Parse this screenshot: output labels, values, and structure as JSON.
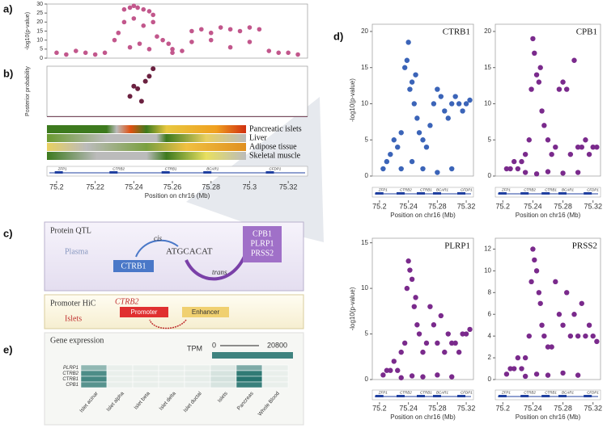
{
  "panel_labels": [
    "a)",
    "b)",
    "c)",
    "d)",
    "e)"
  ],
  "genes": [
    "ZFP1",
    "CTRB2",
    "CTRB1",
    "BCAR1",
    "CFDP1"
  ],
  "chart_data": [
    {
      "type": "scatter",
      "ylabel": "-log10(p-value)",
      "xlim": [
        75.195,
        75.33
      ],
      "ylim": [
        0,
        30
      ],
      "yticks": [
        0,
        5,
        10,
        15,
        20,
        25,
        30
      ],
      "x": [
        75.2,
        75.205,
        75.21,
        75.215,
        75.22,
        75.225,
        75.23,
        75.232,
        75.235,
        75.238,
        75.24,
        75.242,
        75.245,
        75.248,
        75.25,
        75.252,
        75.255,
        75.258,
        75.26,
        75.265,
        75.27,
        75.275,
        75.28,
        75.285,
        75.29,
        75.295,
        75.3,
        75.305,
        75.31,
        75.315,
        75.32,
        75.325,
        75.235,
        75.24,
        75.245,
        75.25,
        75.238,
        75.243,
        75.248,
        75.27,
        75.28,
        75.29,
        75.3,
        75.26
      ],
      "series": [
        {
          "color": "#c2578c",
          "values": [
            3,
            2,
            4,
            3,
            2,
            3,
            10,
            14,
            27,
            28,
            29,
            28,
            27,
            26,
            20,
            12,
            10,
            8,
            5,
            4,
            15,
            16,
            14,
            17,
            16,
            15,
            17,
            16,
            4,
            3,
            3,
            2,
            20,
            22,
            18,
            24,
            6,
            8,
            5,
            9,
            10,
            6,
            9,
            3
          ]
        }
      ]
    },
    {
      "type": "scatter",
      "ylabel": "Posterior probability",
      "xlabel": "Position on chr16 (Mb)",
      "xlim": [
        75.195,
        75.33
      ],
      "ylim": [
        0,
        1
      ],
      "xticks": [
        75.2,
        75.22,
        75.24,
        75.26,
        75.28,
        75.3,
        75.32
      ],
      "tracks": [
        "Pancreatic islets",
        "Liver",
        "Adipose tissue",
        "Skeletal muscle"
      ],
      "x": [
        75.238,
        75.24,
        75.242,
        75.244,
        75.246,
        75.248,
        75.25
      ],
      "series": [
        {
          "color": "#6b2140",
          "values": [
            0.4,
            0.6,
            0.55,
            0.3,
            0.7,
            0.8,
            0.95
          ]
        }
      ]
    },
    {
      "type": "scatter",
      "title": "CTRB1",
      "ylabel": "-log10(p-value)",
      "xlabel": "Position on chr16 (Mb)",
      "xlim": [
        75.19,
        75.33
      ],
      "ylim": [
        0,
        21
      ],
      "yticks": [
        0,
        5,
        10,
        15,
        20
      ],
      "xticks": [
        75.2,
        75.24,
        75.28,
        75.32
      ],
      "x": [
        75.205,
        75.21,
        75.215,
        75.22,
        75.225,
        75.23,
        75.235,
        75.238,
        75.24,
        75.242,
        75.245,
        75.248,
        75.25,
        75.252,
        75.255,
        75.26,
        75.265,
        75.27,
        75.275,
        75.28,
        75.285,
        75.29,
        75.295,
        75.3,
        75.305,
        75.31,
        75.315,
        75.32,
        75.325,
        75.23,
        75.245,
        75.26,
        75.28,
        75.3
      ],
      "series": [
        {
          "color": "#3b64b8",
          "values": [
            1,
            2,
            3,
            5,
            4,
            6,
            15,
            16,
            18.5,
            12,
            13,
            10,
            14,
            8,
            6,
            5,
            4,
            7,
            10,
            12,
            11,
            9,
            8,
            10,
            11,
            10,
            9,
            10,
            10.5,
            1,
            2,
            1,
            0.5,
            1
          ]
        }
      ]
    },
    {
      "type": "scatter",
      "title": "CPB1",
      "xlabel": "Position on chr16 (Mb)",
      "xlim": [
        75.19,
        75.33
      ],
      "ylim": [
        0,
        21
      ],
      "yticks": [
        0,
        5,
        10,
        15,
        20
      ],
      "xticks": [
        75.2,
        75.24,
        75.28,
        75.32
      ],
      "x": [
        75.205,
        75.21,
        75.215,
        75.22,
        75.225,
        75.23,
        75.235,
        75.238,
        75.24,
        75.242,
        75.245,
        75.248,
        75.25,
        75.252,
        75.255,
        75.26,
        75.265,
        75.27,
        75.275,
        75.28,
        75.285,
        75.29,
        75.295,
        75.3,
        75.305,
        75.31,
        75.315,
        75.32,
        75.325,
        75.23,
        75.245,
        75.26,
        75.28,
        75.3
      ],
      "series": [
        {
          "color": "#7a2a8c",
          "values": [
            1,
            1,
            2,
            1,
            2,
            3,
            5,
            12,
            19,
            17,
            14,
            13,
            15,
            9,
            7,
            5,
            3,
            4,
            12,
            13,
            12,
            3,
            16,
            4,
            4,
            5,
            3,
            4,
            4,
            0.5,
            0.3,
            0.6,
            0.4,
            0.5
          ]
        }
      ]
    },
    {
      "type": "scatter",
      "title": "PLRP1",
      "ylabel": "-log10(p-value)",
      "xlabel": "Position on chr16 (Mb)",
      "xlim": [
        75.19,
        75.33
      ],
      "ylim": [
        0,
        15.5
      ],
      "yticks": [
        0,
        5,
        10,
        15
      ],
      "xticks": [
        75.2,
        75.24,
        75.28,
        75.32
      ],
      "x": [
        75.205,
        75.21,
        75.215,
        75.22,
        75.225,
        75.23,
        75.235,
        75.238,
        75.24,
        75.242,
        75.245,
        75.248,
        75.25,
        75.252,
        75.255,
        75.26,
        75.265,
        75.27,
        75.275,
        75.28,
        75.285,
        75.29,
        75.295,
        75.3,
        75.305,
        75.31,
        75.315,
        75.32,
        75.325,
        75.23,
        75.245,
        75.26,
        75.28,
        75.3
      ],
      "series": [
        {
          "color": "#7a2a8c",
          "values": [
            0.5,
            1,
            1,
            2,
            1,
            3,
            4,
            10,
            13,
            12,
            11,
            8,
            9,
            6,
            5,
            3,
            4,
            8,
            6,
            4,
            7,
            3,
            5,
            4,
            4,
            3,
            5,
            5,
            5.5,
            0.2,
            0.4,
            0.3,
            0.5,
            0.3
          ]
        }
      ]
    },
    {
      "type": "scatter",
      "title": "PRSS2",
      "xlabel": "Position on chr16 (Mb)",
      "xlim": [
        75.19,
        75.33
      ],
      "ylim": [
        0,
        13
      ],
      "yticks": [
        0,
        2,
        4,
        6,
        8,
        10,
        12
      ],
      "xticks": [
        75.2,
        75.24,
        75.28,
        75.32
      ],
      "x": [
        75.205,
        75.21,
        75.215,
        75.22,
        75.225,
        75.23,
        75.235,
        75.238,
        75.24,
        75.242,
        75.245,
        75.248,
        75.25,
        75.252,
        75.255,
        75.26,
        75.265,
        75.27,
        75.275,
        75.28,
        75.285,
        75.29,
        75.295,
        75.3,
        75.305,
        75.31,
        75.315,
        75.32,
        75.325,
        75.23,
        75.245,
        75.26,
        75.28,
        75.3
      ],
      "series": [
        {
          "color": "#7a2a8c",
          "values": [
            0.5,
            1,
            1,
            2,
            1,
            2,
            4,
            9,
            12,
            11,
            10,
            8,
            7,
            5,
            4,
            3,
            3,
            9,
            6,
            5,
            8,
            4,
            6,
            4,
            7,
            4,
            5,
            4,
            3.5,
            0.3,
            0.5,
            0.4,
            0.6,
            0.4
          ]
        }
      ]
    },
    {
      "type": "heatmap",
      "title": "Gene expression",
      "color": "#1f6f6a",
      "colorbar": {
        "label": "TPM",
        "ticks": [
          0,
          20800
        ]
      },
      "rows": [
        "PLRP1",
        "CTRB2",
        "CTRB1",
        "CPB1"
      ],
      "categories": [
        "Islet acinar",
        "Islet alpha",
        "Islet beta",
        "Islet delta",
        "Islet ductal",
        "Islets",
        "Pancreas",
        "Whole Blood"
      ],
      "values": [
        [
          9000,
          0,
          0,
          0,
          0,
          1200,
          11000,
          0
        ],
        [
          16000,
          0,
          0,
          0,
          200,
          2000,
          19000,
          0
        ],
        [
          17000,
          0,
          0,
          0,
          200,
          2200,
          20000,
          0
        ],
        [
          15000,
          0,
          0,
          0,
          100,
          1800,
          18000,
          0
        ]
      ]
    }
  ],
  "diagram": {
    "qtl_title": "Protein QTL",
    "tissue_1": "Plasma",
    "cis": "cis",
    "cis_gene": "CTRB1",
    "motif": "ATGCACAT",
    "trans": "trans",
    "trans_genes": [
      "CPB1",
      "PLRP1",
      "PRSS2"
    ],
    "hic_title": "Promoter HiC",
    "tissue_2": "Islets",
    "hic_gene": "CTRB2",
    "promoter": "Promoter",
    "enhancer": "Enhancer"
  }
}
